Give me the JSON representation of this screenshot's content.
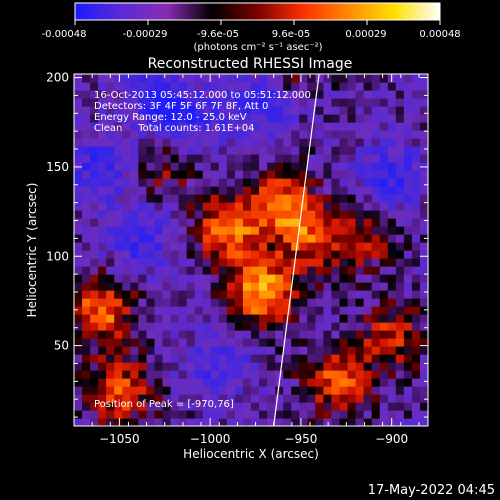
{
  "colorbar": {
    "ticks": [
      "-0.00048",
      "-0.00029",
      "-9.6e-05",
      "9.6e-05",
      "0.00029",
      "0.00048"
    ],
    "units": "(photons cm⁻² s⁻¹ asec⁻²)",
    "stops": [
      "#1a1aff",
      "#5a2bd8",
      "#8a2bb8",
      "#000000",
      "#7a0000",
      "#ff3000",
      "#ff8a00",
      "#ffe000",
      "#ffffff"
    ]
  },
  "info": {
    "line1": "16-Oct-2013 05:45:12.000 to 05:51:12.000",
    "line2": "Detectors: 3F 4F 5F 6F 7F 8F, Att 0",
    "line3": "Energy Range: 12.0 - 25.0 keV",
    "line4": "Clean     Total counts: 1.61E+04",
    "peak": "Position of Peak = [-970,76]"
  },
  "timestamp": "17-May-2022 04:45",
  "chart_data": {
    "type": "heatmap",
    "title": "Reconstructed RHESSI Image",
    "xlabel": "Heliocentric X (arcsec)",
    "ylabel": "Heliocentric Y (arcsec)",
    "xlim": [
      -1075,
      -880
    ],
    "ylim": [
      5,
      202
    ],
    "xticks": [
      -1050,
      -1000,
      -950,
      -900
    ],
    "yticks": [
      50,
      100,
      150,
      200
    ],
    "peak": [
      -970,
      76
    ],
    "limb_line": [
      [
        -965,
        5
      ],
      [
        -940,
        202
      ]
    ],
    "bright_regions": [
      {
        "x": -990,
        "y": 115,
        "level": 0.85
      },
      {
        "x": -970,
        "y": 80,
        "level": 1.0
      },
      {
        "x": -960,
        "y": 130,
        "level": 0.75
      },
      {
        "x": -1060,
        "y": 70,
        "level": 0.8
      },
      {
        "x": -1050,
        "y": 25,
        "level": 0.7
      },
      {
        "x": -930,
        "y": 30,
        "level": 0.7
      },
      {
        "x": -945,
        "y": 110,
        "level": 0.6
      },
      {
        "x": -900,
        "y": 55,
        "level": 0.55
      },
      {
        "x": -915,
        "y": 110,
        "level": 0.45
      },
      {
        "x": -960,
        "y": 200,
        "level": 0.5
      },
      {
        "x": -1025,
        "y": 150,
        "level": 0.35
      }
    ],
    "dim_regions": [
      {
        "x": -970,
        "y": 190,
        "level": -0.7
      },
      {
        "x": -1060,
        "y": 150,
        "level": -0.5
      },
      {
        "x": -1040,
        "y": 110,
        "level": -0.45
      },
      {
        "x": -1030,
        "y": 190,
        "level": -0.55
      },
      {
        "x": -900,
        "y": 145,
        "level": -0.5
      },
      {
        "x": -995,
        "y": 40,
        "level": -0.4
      },
      {
        "x": -1010,
        "y": 175,
        "level": -0.45
      }
    ]
  }
}
